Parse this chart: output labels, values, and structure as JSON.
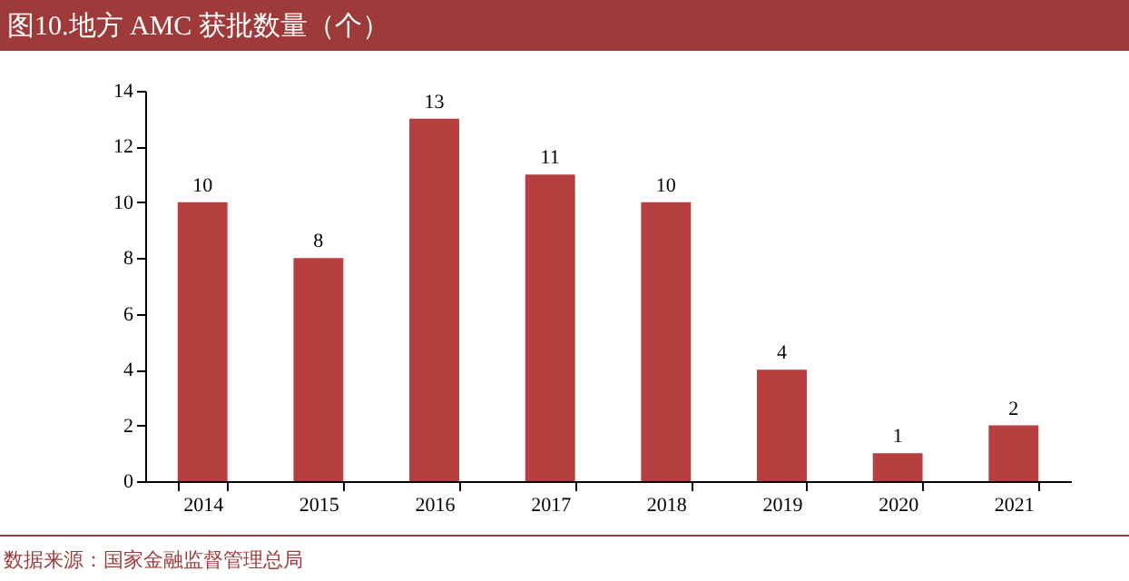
{
  "chart_data": {
    "type": "bar",
    "title": "图10.地方 AMC 获批数量（个）",
    "categories": [
      "2014",
      "2015",
      "2016",
      "2017",
      "2018",
      "2019",
      "2020",
      "2021"
    ],
    "values": [
      10,
      8,
      13,
      11,
      10,
      4,
      1,
      2
    ],
    "color": "#b5403f",
    "ylim": [
      0,
      14
    ],
    "yticks": [
      0,
      2,
      4,
      6,
      8,
      10,
      12,
      14
    ],
    "grid": false,
    "data_labels": true,
    "annotations": [
      "数据来源：国家金融监督管理总局"
    ]
  }
}
